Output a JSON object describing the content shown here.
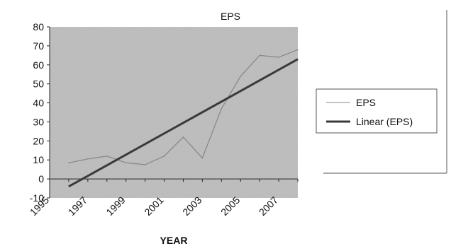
{
  "chart_data": {
    "type": "line",
    "title": "EPS",
    "xlabel": "YEAR",
    "ylabel": "",
    "x": [
      1996,
      1997,
      1998,
      1999,
      2000,
      2001,
      2002,
      2003,
      2004,
      2005,
      2006,
      2007,
      2008
    ],
    "xlim": [
      1995,
      2008
    ],
    "x_ticks": [
      "1995",
      "1997",
      "1999",
      "2001",
      "2003",
      "2005",
      "2007"
    ],
    "y_ticks": [
      "-10",
      "0",
      "10",
      "20",
      "30",
      "40",
      "50",
      "60",
      "70",
      "80"
    ],
    "ylim": [
      -10,
      80
    ],
    "grid": false,
    "legend_position": "right",
    "series": [
      {
        "name": "EPS",
        "values": [
          8.5,
          10.5,
          12,
          8.5,
          7.5,
          12,
          22,
          11,
          37,
          54,
          65,
          64,
          68
        ],
        "color": "#8a8a8a"
      },
      {
        "name": "Linear (EPS)",
        "trendline_endpoints": [
          -4,
          63
        ],
        "color": "#3a3a3a"
      }
    ],
    "plot_background": "#bdbdbd",
    "zero_line": true
  }
}
